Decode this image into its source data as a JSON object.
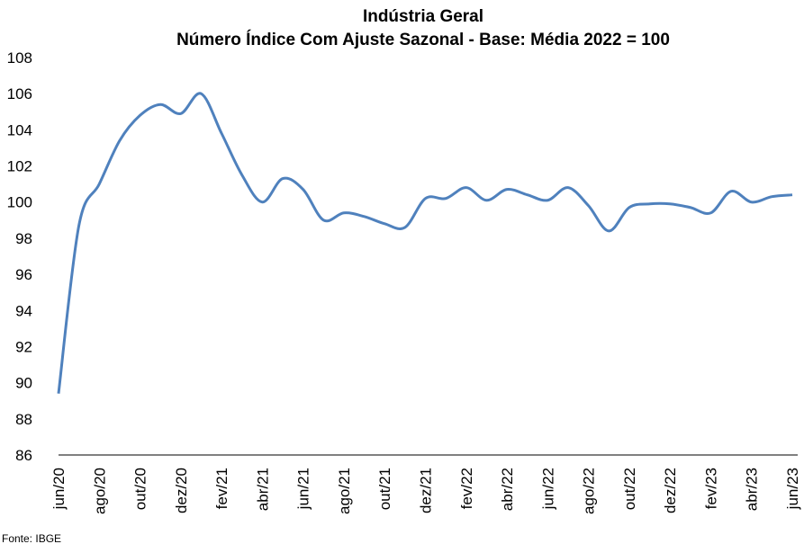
{
  "chart_data": {
    "type": "line",
    "title": "Indústria Geral",
    "subtitle": "Número Índice Com Ajuste Sazonal - Base: Média 2022 = 100",
    "xlabel": "",
    "ylabel": "",
    "ylim": [
      86,
      108
    ],
    "yticks": [
      86,
      88,
      90,
      92,
      94,
      96,
      98,
      100,
      102,
      104,
      106,
      108
    ],
    "x_tick_labels": [
      "jun/20",
      "ago/20",
      "out/20",
      "dez/20",
      "fev/21",
      "abr/21",
      "jun/21",
      "ago/21",
      "out/21",
      "dez/21",
      "fev/22",
      "abr/22",
      "jun/22",
      "ago/22",
      "out/22",
      "dez/22",
      "fev/23",
      "abr/23",
      "jun/23"
    ],
    "grid": false,
    "legend": "none",
    "color": "#4F81BD",
    "x": [
      "jun/20",
      "jul/20",
      "ago/20",
      "set/20",
      "out/20",
      "nov/20",
      "dez/20",
      "jan/21",
      "fev/21",
      "mar/21",
      "abr/21",
      "mai/21",
      "jun/21",
      "jul/21",
      "ago/21",
      "set/21",
      "out/21",
      "nov/21",
      "dez/21",
      "jan/22",
      "fev/22",
      "mar/22",
      "abr/22",
      "mai/22",
      "jun/22",
      "jul/22",
      "ago/22",
      "set/22",
      "out/22",
      "nov/22",
      "dez/22",
      "jan/23",
      "fev/23",
      "mar/23",
      "abr/23",
      "mai/23",
      "jun/23"
    ],
    "series": [
      {
        "values": [
          89.4,
          98.7,
          101.0,
          103.4,
          104.8,
          105.4,
          104.9,
          106.0,
          103.8,
          101.5,
          100.0,
          101.3,
          100.7,
          99.0,
          99.4,
          99.2,
          98.8,
          98.6,
          100.2,
          100.2,
          100.8,
          100.1,
          100.7,
          100.4,
          100.1,
          100.8,
          99.8,
          98.4,
          99.7,
          99.9,
          99.9,
          99.7,
          99.4,
          100.6,
          100.0,
          100.3,
          100.4
        ]
      }
    ]
  },
  "footer": {
    "source": "Fonte: IBGE"
  }
}
